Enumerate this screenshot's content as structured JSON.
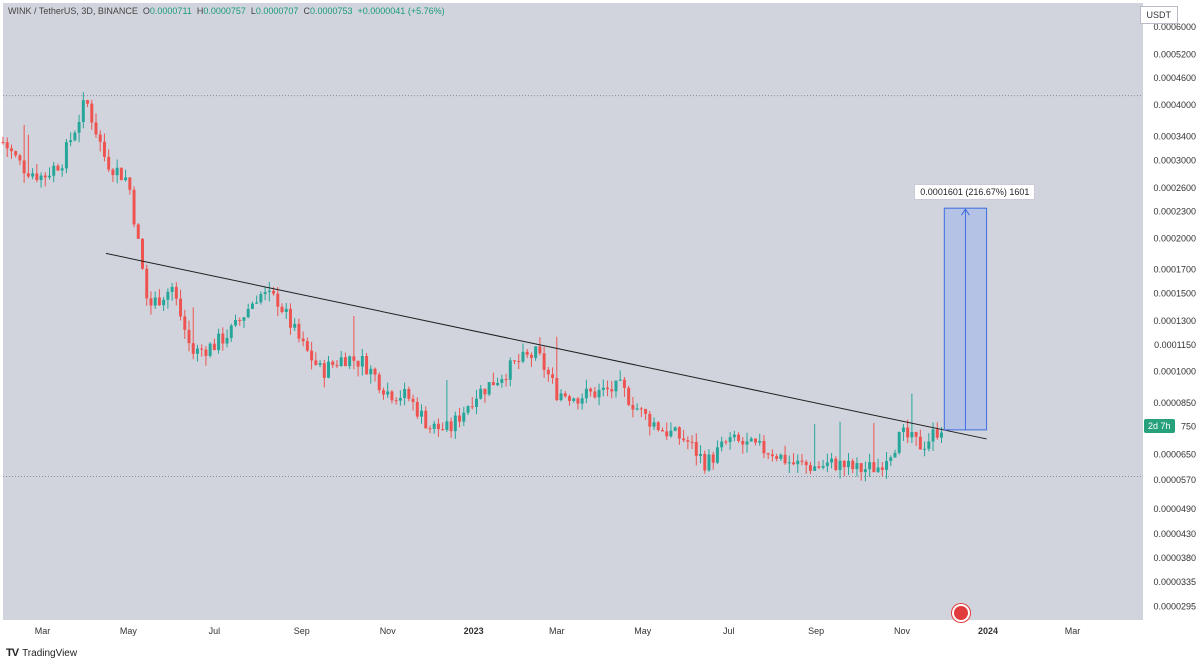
{
  "header": {
    "symbol": "WINK / TetherUS, 3D, BINANCE",
    "open_label": "O",
    "open": "0.0000711",
    "high_label": "H",
    "high": "0.0000757",
    "low_label": "L",
    "low": "0.0000707",
    "close_label": "C",
    "close": "0.0000753",
    "change": "+0.0000041 (+5.76%)"
  },
  "currency_button": "USDT",
  "footer_brand": "TradingView",
  "footer_logo": "TV",
  "measure_label": "0.0001601 (216.67%) 1601",
  "countdown_badge": "2d 7h",
  "countdown_price": "750",
  "colors": {
    "up": "#26a69a",
    "down": "#ef5350",
    "bg": "#d1d4dc",
    "axis_bg": "#ffffff",
    "trendline": "#1f1f1f",
    "measure_fill": "#9db3ee",
    "measure_line": "#3f6ee0"
  },
  "icons": {
    "economic_event": "us-flag-icon",
    "brand": "tradingview-logo-icon"
  },
  "chart_data": {
    "type": "candlestick",
    "scale": "log",
    "xlabel": "",
    "ylabel": "",
    "x_ticks": [
      "Mar",
      "May",
      "Jul",
      "Sep",
      "Nov",
      "2023",
      "Mar",
      "May",
      "Jul",
      "Sep",
      "Nov",
      "2024",
      "Mar"
    ],
    "y_ticks": [
      "0.0006000",
      "0.0005200",
      "0.0004600",
      "0.0004000",
      "0.0003400",
      "0.0003000",
      "0.0002600",
      "0.0002300",
      "0.0002000",
      "0.0001700",
      "0.0001500",
      "0.0001300",
      "0.0001150",
      "0.0001000",
      "0.0000850",
      "0.0000750",
      "0.0000650",
      "0.0000570",
      "0.0000490",
      "0.0000430",
      "0.0000380",
      "0.0000335",
      "0.0000295"
    ],
    "ylim": [
      2.75e-05,
      0.00068
    ],
    "price_path": [
      [
        "2022-02-01",
        0.00033
      ],
      [
        "2022-02-15",
        0.00029
      ],
      [
        "2022-03-01",
        0.000275
      ],
      [
        "2022-03-15",
        0.0003
      ],
      [
        "2022-04-01",
        0.00041
      ],
      [
        "2022-04-15",
        0.0003
      ],
      [
        "2022-05-01",
        0.00027
      ],
      [
        "2022-05-15",
        0.00014
      ],
      [
        "2022-06-01",
        0.000155
      ],
      [
        "2022-06-15",
        0.00011
      ],
      [
        "2022-07-01",
        0.000115
      ],
      [
        "2022-07-15",
        0.000125
      ],
      [
        "2022-08-01",
        0.00015
      ],
      [
        "2022-08-15",
        0.000145
      ],
      [
        "2022-09-01",
        0.000115
      ],
      [
        "2022-09-15",
        0.0001
      ],
      [
        "2022-10-01",
        0.000108
      ],
      [
        "2022-10-15",
        0.000105
      ],
      [
        "2022-11-01",
        9e-05
      ],
      [
        "2022-11-15",
        8.8e-05
      ],
      [
        "2022-12-01",
        7.5e-05
      ],
      [
        "2022-12-15",
        7.4e-05
      ],
      [
        "2023-01-01",
        8.8e-05
      ],
      [
        "2023-01-15",
        9.5e-05
      ],
      [
        "2023-02-01",
        0.000105
      ],
      [
        "2023-02-15",
        0.00011
      ],
      [
        "2023-03-01",
        9e-05
      ],
      [
        "2023-03-15",
        8.8e-05
      ],
      [
        "2023-04-01",
        9e-05
      ],
      [
        "2023-04-15",
        9.2e-05
      ],
      [
        "2023-05-01",
        8e-05
      ],
      [
        "2023-05-15",
        7.4e-05
      ],
      [
        "2023-06-01",
        7e-05
      ],
      [
        "2023-06-15",
        6.2e-05
      ],
      [
        "2023-07-01",
        7e-05
      ],
      [
        "2023-07-15",
        6.8e-05
      ],
      [
        "2023-08-01",
        6.6e-05
      ],
      [
        "2023-08-15",
        6.2e-05
      ],
      [
        "2023-09-01",
        6.1e-05
      ],
      [
        "2023-09-15",
        6.2e-05
      ],
      [
        "2023-10-01",
        6e-05
      ],
      [
        "2023-10-15",
        6.1e-05
      ],
      [
        "2023-11-01",
        7.2e-05
      ],
      [
        "2023-11-15",
        6.8e-05
      ],
      [
        "2023-11-29",
        7.53e-05
      ]
    ],
    "trendline": {
      "from": [
        "2022-04-15",
        0.000185
      ],
      "to": [
        "2023-12-31",
        7.05e-05
      ]
    },
    "measure": {
      "from_date": "2023-12-01",
      "to_date": "2023-12-31",
      "low": 7.39e-05,
      "high": 0.000234
    },
    "range_marker": {
      "level_dotted_top": 0.00042,
      "level_dotted_bottom": 5.8e-05
    },
    "x_range": [
      "2022-02-01",
      "2024-04-20"
    ]
  }
}
